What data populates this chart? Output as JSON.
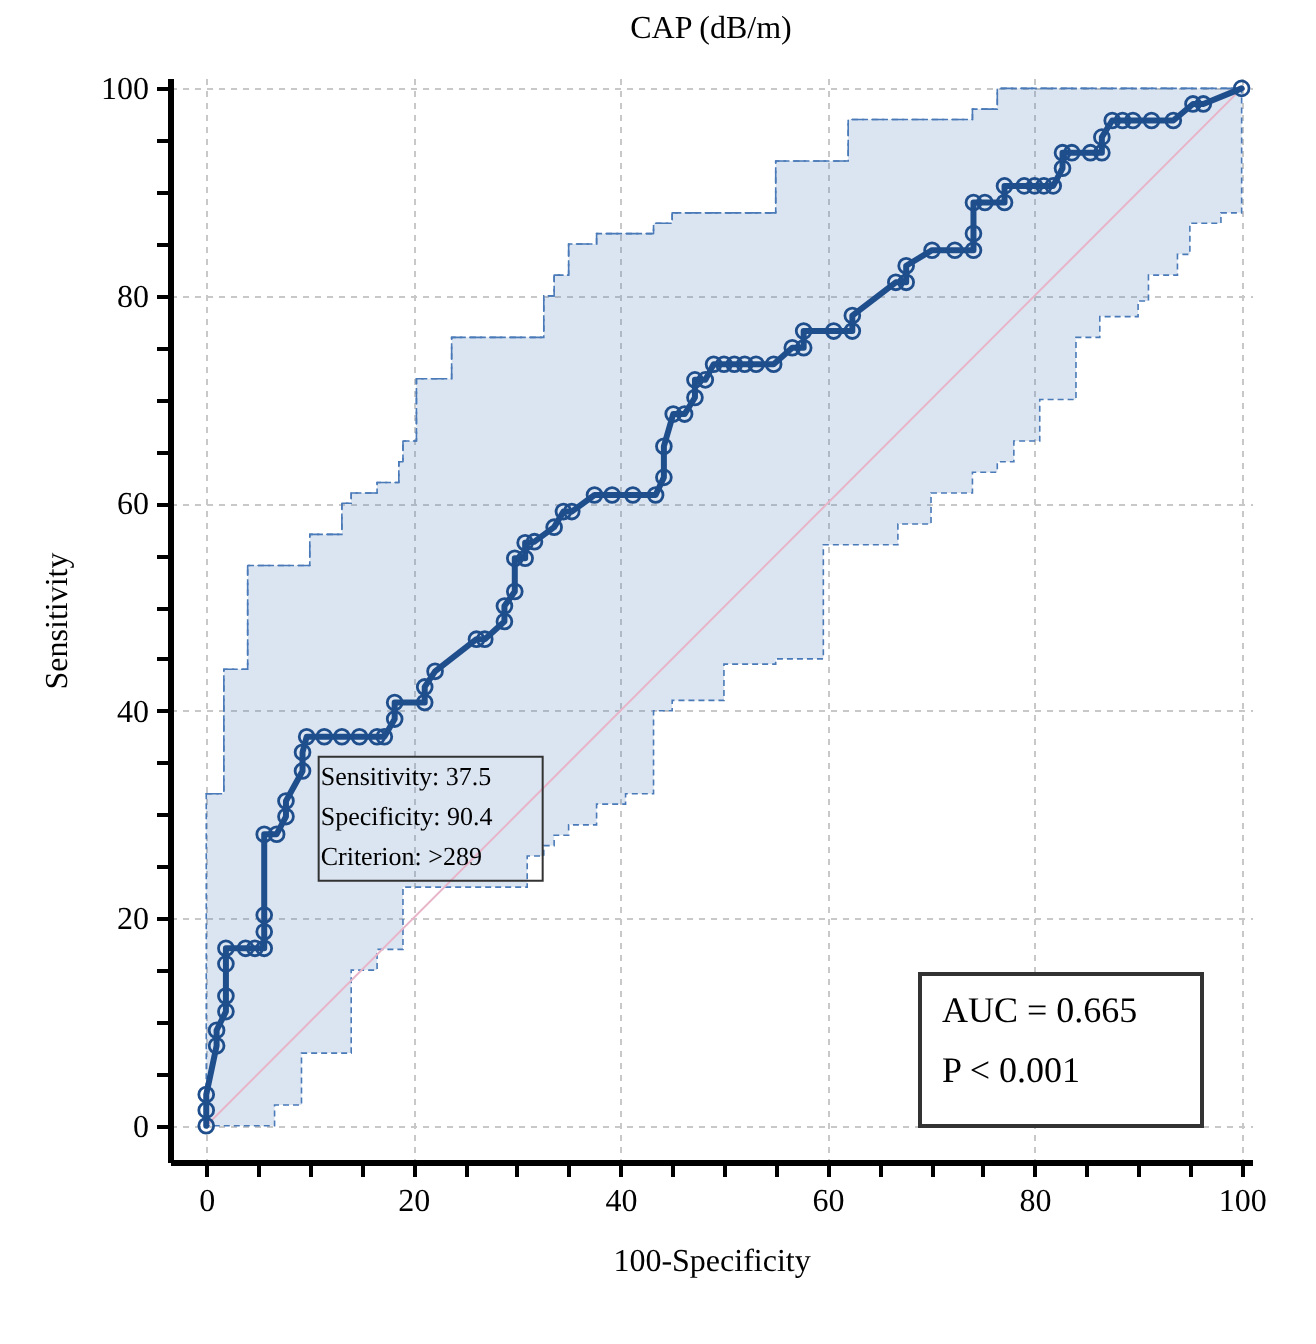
{
  "chart_data": {
    "type": "line",
    "title": "CAP (dB/m)",
    "xlabel": "100-Specificity",
    "ylabel": "Sensitivity",
    "xlim": [
      -3.5,
      101
    ],
    "ylim": [
      -3.5,
      101
    ],
    "xticks": [
      0,
      {
        "value": 5,
        "label": null
      },
      {
        "value": 10,
        "label": null
      },
      {
        "value": 15,
        "label": null
      },
      20,
      {
        "value": 25,
        "label": null
      },
      {
        "value": 30,
        "label": null
      },
      {
        "value": 35,
        "label": null
      },
      40,
      {
        "value": 45,
        "label": null
      },
      {
        "value": 50,
        "label": null
      },
      {
        "value": 55,
        "label": null
      },
      60,
      {
        "value": 65,
        "label": null
      },
      {
        "value": 70,
        "label": null
      },
      {
        "value": 75,
        "label": null
      },
      80,
      {
        "value": 85,
        "label": null
      },
      {
        "value": 90,
        "label": null
      },
      {
        "value": 95,
        "label": null
      },
      100
    ],
    "yticks": [
      0,
      {
        "value": 5,
        "label": null
      },
      {
        "value": 10,
        "label": null
      },
      {
        "value": 15,
        "label": null
      },
      20,
      {
        "value": 25,
        "label": null
      },
      {
        "value": 30,
        "label": null
      },
      {
        "value": 35,
        "label": null
      },
      40,
      {
        "value": 45,
        "label": null
      },
      {
        "value": 50,
        "label": null
      },
      {
        "value": 55,
        "label": null
      },
      60,
      {
        "value": 65,
        "label": null
      },
      {
        "value": 70,
        "label": null
      },
      {
        "value": 75,
        "label": null
      },
      80,
      {
        "value": 85,
        "label": null
      },
      {
        "value": 90,
        "label": null
      },
      {
        "value": 95,
        "label": null
      },
      100
    ],
    "grid": true,
    "marker": "circle",
    "line_style": "solid",
    "series": [
      {
        "type": "line",
        "color": "#4a7ab8",
        "marker": "none",
        "line_style": "dashed",
        "x": [
          0,
          1.7,
          1.7,
          4,
          4,
          6.6,
          6.6,
          9.2,
          9.2,
          10,
          10,
          13.1,
          13.1,
          14,
          14,
          16.5,
          16.5,
          18.6,
          18.6,
          19,
          19,
          20.3,
          20.3,
          23.7,
          23.7,
          31,
          31,
          32.6,
          32.6,
          33.6,
          33.6,
          35,
          35,
          37.7,
          37.7,
          40.5,
          40.5,
          43.2,
          43.2,
          45,
          45,
          50,
          50,
          55,
          55,
          59.6,
          59.6,
          62,
          62,
          66.8,
          66.8,
          70,
          70,
          74,
          74,
          76.4,
          76.4,
          78,
          78,
          80.5,
          80.5,
          84,
          84,
          86.3,
          86.3,
          90,
          90,
          91,
          91,
          93.8,
          93.8,
          95,
          95,
          98,
          98,
          100,
          100
        ],
        "values": [
          32,
          32,
          44,
          44,
          54,
          54,
          54,
          54,
          54,
          54,
          57,
          57,
          60,
          60,
          61,
          61,
          62,
          62,
          64,
          64,
          66,
          66,
          72,
          72,
          76,
          76,
          76,
          76,
          80,
          80,
          82,
          82,
          85,
          85,
          86,
          86,
          86,
          86,
          87,
          87,
          88,
          88,
          88,
          88,
          93,
          93,
          93,
          93,
          97,
          97,
          97,
          97,
          97,
          97,
          98,
          98,
          100,
          100,
          100,
          100,
          100,
          100,
          100,
          100,
          100,
          100,
          100,
          100,
          100,
          100,
          100,
          100,
          100,
          100,
          100,
          100,
          100
        ],
        "lower": [
          0,
          0,
          0,
          0,
          0,
          0,
          2,
          2,
          7,
          7,
          7,
          7,
          7,
          7,
          15,
          15,
          17,
          17,
          17,
          17,
          23,
          23,
          23,
          23,
          23,
          23,
          26,
          26,
          27,
          27,
          28,
          28,
          29,
          29,
          31,
          31,
          32,
          32,
          40,
          40,
          41,
          41,
          44.5,
          44.5,
          45,
          45,
          56,
          56,
          56,
          56,
          58,
          58,
          61,
          61,
          63,
          63,
          64,
          64,
          66,
          66,
          70,
          70,
          76,
          76,
          78,
          78,
          79.5,
          79.5,
          82,
          82,
          84,
          84,
          87,
          87,
          88,
          88,
          92
        ],
        "upper": [
          32,
          32,
          44,
          44,
          54,
          54,
          54,
          54,
          54,
          54,
          57,
          57,
          60,
          60,
          61,
          61,
          62,
          62,
          64,
          64,
          66,
          66,
          72,
          72,
          76,
          76,
          76,
          76,
          80,
          80,
          82,
          82,
          85,
          85,
          86,
          86,
          86,
          86,
          87,
          87,
          88,
          88,
          88,
          88,
          93,
          93,
          93,
          93,
          97,
          97,
          97,
          97,
          97,
          97,
          98,
          98,
          100,
          100,
          100,
          100,
          100,
          100,
          100,
          100,
          100,
          100,
          100,
          100,
          100,
          100,
          100,
          100,
          100,
          100,
          100,
          100,
          100
        ]
      },
      {
        "type": "line",
        "color": "#e8b4c8",
        "marker": "none",
        "x": [
          0,
          100
        ],
        "values": [
          0,
          100
        ]
      },
      {
        "type": "line",
        "color": "#1f4e8c",
        "x": [
          0,
          0,
          0,
          1,
          1,
          1.9,
          1.9,
          1.9,
          1.9,
          3.8,
          4.7,
          5.6,
          5.6,
          5.6,
          5.6,
          6.8,
          7.7,
          7.7,
          9.3,
          9.3,
          9.7,
          11.4,
          13.1,
          14.8,
          16.5,
          17.2,
          18.2,
          18.2,
          21.1,
          21.1,
          22.1,
          26.1,
          26.9,
          28.8,
          28.8,
          29.8,
          29.8,
          30.8,
          30.8,
          31.7,
          33.6,
          34.5,
          35.3,
          37.5,
          39.2,
          41.2,
          43.4,
          44.2,
          44.2,
          45.1,
          46.2,
          47.2,
          47.2,
          48.2,
          49,
          50,
          51,
          52,
          53.1,
          54.8,
          56.6,
          57.7,
          57.7,
          60.6,
          62.4,
          62.4,
          66.6,
          67.6,
          67.6,
          70.1,
          72.3,
          74.1,
          74.1,
          74.1,
          75.2,
          77.1,
          77.1,
          79,
          80,
          80.9,
          81.8,
          82.7,
          82.7,
          83.6,
          85.4,
          86.5,
          86.5,
          87.5,
          88.5,
          89.5,
          91.3,
          93.4,
          95.3,
          96.3,
          100
        ],
        "values": [
          0,
          1.5,
          3,
          7.7,
          9.2,
          11,
          12.5,
          15.6,
          17.1,
          17.1,
          17.1,
          17.1,
          18.7,
          20.3,
          28.1,
          28.1,
          29.8,
          31.3,
          34.2,
          36,
          37.5,
          37.5,
          37.5,
          37.5,
          37.5,
          37.5,
          39.2,
          40.8,
          40.8,
          42.3,
          43.8,
          46.9,
          46.9,
          48.6,
          50.1,
          51.5,
          54.7,
          54.7,
          56.2,
          56.3,
          57.7,
          59.2,
          59.2,
          60.8,
          60.8,
          60.8,
          60.8,
          62.5,
          65.5,
          68.6,
          68.6,
          70.2,
          71.9,
          71.9,
          73.4,
          73.4,
          73.4,
          73.4,
          73.4,
          73.4,
          75,
          75,
          76.6,
          76.6,
          76.6,
          78.1,
          81.3,
          81.3,
          82.9,
          84.4,
          84.4,
          84.4,
          86,
          89,
          89,
          89,
          90.6,
          90.6,
          90.6,
          90.6,
          90.6,
          92.3,
          93.8,
          93.8,
          93.8,
          93.8,
          95.3,
          96.9,
          96.9,
          96.9,
          96.9,
          96.9,
          98.5,
          98.5,
          100
        ]
      }
    ],
    "annotations": [
      {
        "text": "Sensitivity: 37.5\nSpecificity: 90.4\nCriterion: >289",
        "x": 9.7,
        "y": 37.5
      },
      "AUC = 0.665\nP < 0.001"
    ]
  }
}
